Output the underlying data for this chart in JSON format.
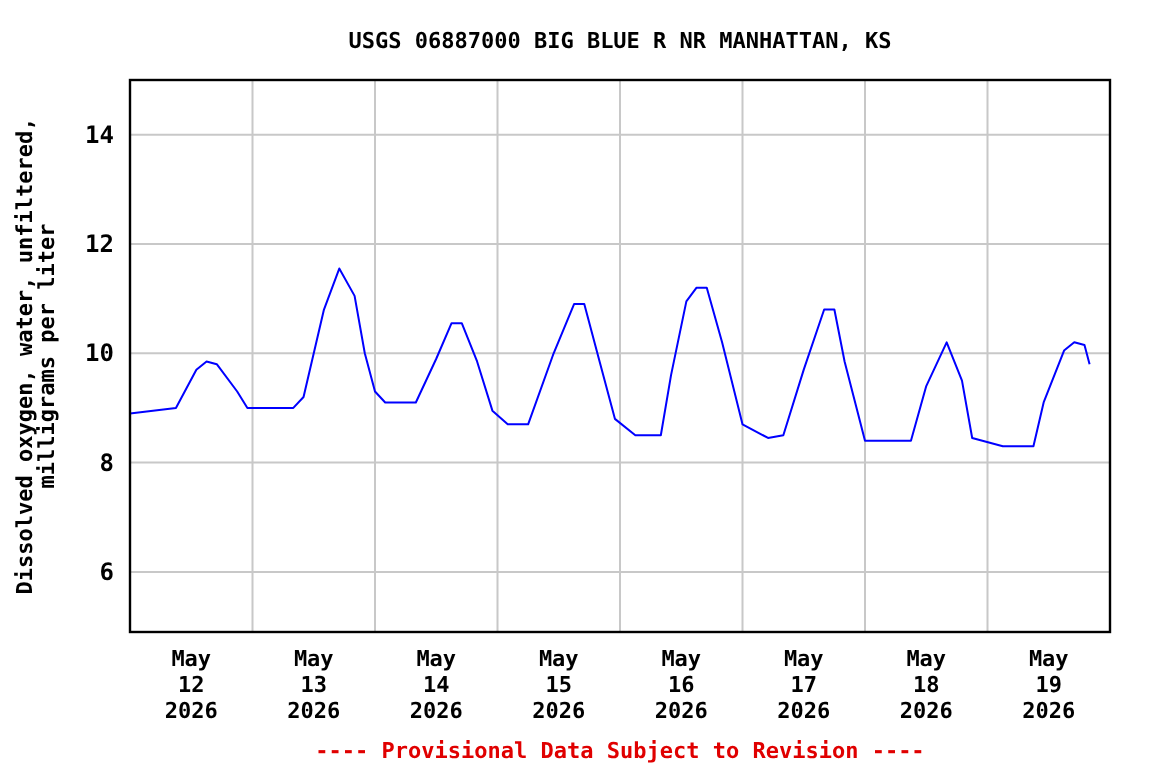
{
  "chart_data": {
    "type": "line",
    "title": "USGS 06887000 BIG BLUE R NR MANHATTAN, KS",
    "ylabel": "Dissolved oxygen, water, unfiltered, milligrams per liter",
    "annotations": [
      "---- Provisional Data Subject to Revision ----"
    ],
    "x": [
      "2026-05-12T00:00",
      "2026-05-12T09:00",
      "2026-05-12T13:00",
      "2026-05-12T15:00",
      "2026-05-12T17:00",
      "2026-05-12T21:00",
      "2026-05-12T23:00",
      "2026-05-13T08:00",
      "2026-05-13T10:00",
      "2026-05-13T14:00",
      "2026-05-13T17:00",
      "2026-05-13T20:00",
      "2026-05-13T22:00",
      "2026-05-14T00:00",
      "2026-05-14T02:00",
      "2026-05-14T08:00",
      "2026-05-14T12:00",
      "2026-05-14T15:00",
      "2026-05-14T17:00",
      "2026-05-14T20:00",
      "2026-05-14T23:00",
      "2026-05-15T02:00",
      "2026-05-15T06:00",
      "2026-05-15T11:00",
      "2026-05-15T15:00",
      "2026-05-15T17:00",
      "2026-05-15T20:00",
      "2026-05-15T23:00",
      "2026-05-16T03:00",
      "2026-05-16T08:00",
      "2026-05-16T10:00",
      "2026-05-16T13:00",
      "2026-05-16T15:00",
      "2026-05-16T17:00",
      "2026-05-16T20:00",
      "2026-05-17T00:00",
      "2026-05-17T05:00",
      "2026-05-17T08:00",
      "2026-05-17T12:00",
      "2026-05-17T16:00",
      "2026-05-17T18:00",
      "2026-05-17T20:00",
      "2026-05-18T00:00",
      "2026-05-18T09:00",
      "2026-05-18T12:00",
      "2026-05-18T16:00",
      "2026-05-18T19:00",
      "2026-05-18T21:00",
      "2026-05-19T03:00",
      "2026-05-19T09:00",
      "2026-05-19T11:00",
      "2026-05-19T15:00",
      "2026-05-19T17:00",
      "2026-05-19T19:00",
      "2026-05-19T20:00"
    ],
    "series": [
      {
        "color": "#0000ff",
        "values": [
          8.9,
          9.0,
          9.7,
          9.85,
          9.8,
          9.3,
          9.0,
          9.0,
          9.2,
          10.8,
          11.55,
          11.05,
          10.0,
          9.3,
          9.1,
          9.1,
          9.9,
          10.55,
          10.55,
          9.85,
          8.95,
          8.7,
          8.7,
          10.0,
          10.9,
          10.9,
          9.85,
          8.8,
          8.5,
          8.5,
          9.6,
          10.95,
          11.2,
          11.2,
          10.2,
          8.7,
          8.45,
          8.5,
          9.7,
          10.8,
          10.8,
          9.85,
          8.4,
          8.4,
          9.4,
          10.2,
          9.5,
          8.45,
          8.3,
          8.3,
          9.1,
          10.05,
          10.2,
          10.15,
          9.8
        ]
      }
    ],
    "xlim": [
      "2026-05-12T00:00",
      "2026-05-20T00:00"
    ],
    "xticks": [
      {
        "value": "2026-05-12T12:00",
        "label": "May\n12\n2026"
      },
      {
        "value": "2026-05-13T00:00",
        "label": null
      },
      {
        "value": "2026-05-13T12:00",
        "label": "May\n13\n2026"
      },
      {
        "value": "2026-05-14T00:00",
        "label": null
      },
      {
        "value": "2026-05-14T12:00",
        "label": "May\n14\n2026"
      },
      {
        "value": "2026-05-15T00:00",
        "label": null
      },
      {
        "value": "2026-05-15T12:00",
        "label": "May\n15\n2026"
      },
      {
        "value": "2026-05-16T00:00",
        "label": null
      },
      {
        "value": "2026-05-16T12:00",
        "label": "May\n16\n2026"
      },
      {
        "value": "2026-05-17T00:00",
        "label": null
      },
      {
        "value": "2026-05-17T12:00",
        "label": "May\n17\n2026"
      },
      {
        "value": "2026-05-18T00:00",
        "label": null
      },
      {
        "value": "2026-05-18T12:00",
        "label": "May\n18\n2026"
      },
      {
        "value": "2026-05-19T00:00",
        "label": null
      },
      {
        "value": "2026-05-19T12:00",
        "label": "May\n19\n2026"
      }
    ],
    "ylim": [
      4.9,
      15
    ],
    "yticks": [
      6,
      8,
      10,
      12,
      14
    ],
    "grid": true,
    "marker": "none",
    "line_style": "solid"
  }
}
